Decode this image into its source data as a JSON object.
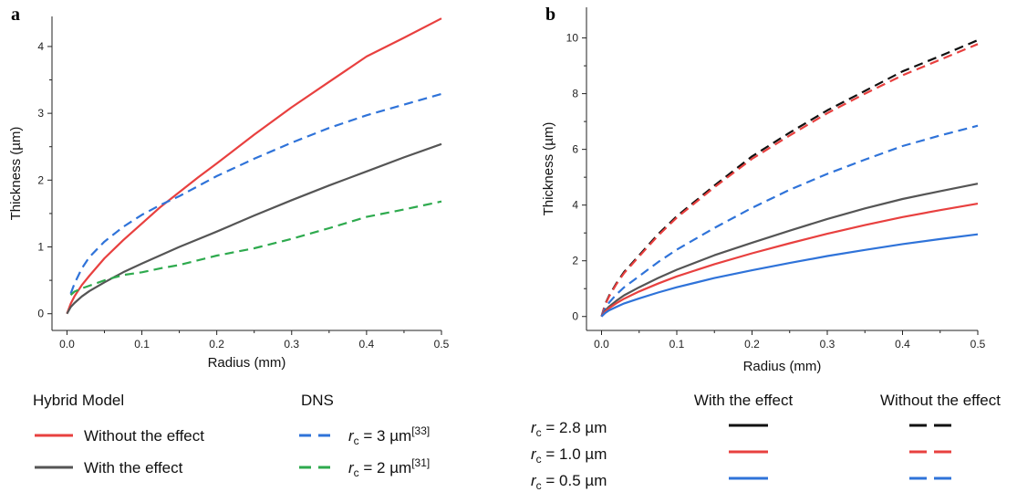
{
  "chart_data": [
    {
      "panel": "a",
      "type": "line",
      "xlabel": "Radius (mm)",
      "ylabel": "Thickness (µm)",
      "xlim": [
        -0.02,
        0.5
      ],
      "ylim": [
        -0.25,
        4.45
      ],
      "xticks": [
        "0.0",
        "0.1",
        "0.2",
        "0.3",
        "0.4",
        "0.5"
      ],
      "xtick_values": [
        0,
        0.1,
        0.2,
        0.3,
        0.4,
        0.5
      ],
      "yticks": [
        "0",
        "1",
        "2",
        "3",
        "4"
      ],
      "ytick_values": [
        0,
        1,
        2,
        3,
        4
      ],
      "legend": {
        "groups": [
          {
            "title": "Hybrid Model",
            "entries": [
              {
                "text": "Without the effect",
                "series": 0
              },
              {
                "text": "With the effect",
                "series": 1
              }
            ]
          },
          {
            "title": "DNS",
            "entries": [
              {
                "text": "r",
                "sub": "c",
                "rest": " = 3 µm",
                "sup": "[33]",
                "series": 2
              },
              {
                "text": "r",
                "sub": "c",
                "rest": " = 2 µm",
                "sup": "[31]",
                "series": 3
              }
            ]
          }
        ]
      },
      "series": [
        {
          "color": "#e8403f",
          "dash": "solid",
          "x": [
            0,
            0.005,
            0.01,
            0.02,
            0.03,
            0.05,
            0.075,
            0.1,
            0.125,
            0.15,
            0.175,
            0.2,
            0.25,
            0.3,
            0.35,
            0.4,
            0.45,
            0.5
          ],
          "y": [
            0,
            0.15,
            0.26,
            0.43,
            0.57,
            0.83,
            1.1,
            1.35,
            1.6,
            1.82,
            2.04,
            2.25,
            2.68,
            3.09,
            3.47,
            3.85,
            4.13,
            4.42
          ]
        },
        {
          "color": "#555555",
          "dash": "solid",
          "x": [
            0,
            0.005,
            0.01,
            0.02,
            0.03,
            0.05,
            0.075,
            0.1,
            0.15,
            0.2,
            0.25,
            0.3,
            0.35,
            0.4,
            0.45,
            0.5
          ],
          "y": [
            0,
            0.1,
            0.16,
            0.26,
            0.34,
            0.47,
            0.62,
            0.75,
            1.0,
            1.23,
            1.47,
            1.7,
            1.92,
            2.13,
            2.34,
            2.54
          ]
        },
        {
          "color": "#2f73d9",
          "dash": "dash",
          "x": [
            0.005,
            0.01,
            0.02,
            0.03,
            0.05,
            0.075,
            0.1,
            0.125,
            0.15,
            0.2,
            0.25,
            0.3,
            0.35,
            0.4,
            0.45,
            0.5
          ],
          "y": [
            0.3,
            0.45,
            0.68,
            0.85,
            1.08,
            1.3,
            1.48,
            1.63,
            1.76,
            2.06,
            2.32,
            2.56,
            2.78,
            2.97,
            3.13,
            3.29
          ]
        },
        {
          "color": "#2eaa4e",
          "dash": "dash",
          "x": [
            0.005,
            0.01,
            0.02,
            0.03,
            0.05,
            0.075,
            0.1,
            0.125,
            0.15,
            0.2,
            0.25,
            0.3,
            0.35,
            0.4,
            0.45,
            0.5
          ],
          "y": [
            0.28,
            0.33,
            0.38,
            0.42,
            0.5,
            0.58,
            0.62,
            0.68,
            0.73,
            0.87,
            0.98,
            1.12,
            1.28,
            1.45,
            1.56,
            1.68
          ]
        }
      ]
    },
    {
      "panel": "b",
      "type": "line",
      "xlabel": "Radius (mm)",
      "ylabel": "Thickness (µm)",
      "xlim": [
        -0.02,
        0.5
      ],
      "ylim": [
        -0.5,
        11.1
      ],
      "xticks": [
        "0.0",
        "0.1",
        "0.2",
        "0.3",
        "0.4",
        "0.5"
      ],
      "xtick_values": [
        0,
        0.1,
        0.2,
        0.3,
        0.4,
        0.5
      ],
      "yticks": [
        "0",
        "2",
        "4",
        "6",
        "8",
        "10"
      ],
      "ytick_values": [
        0,
        2,
        4,
        6,
        8,
        10
      ],
      "legend": {
        "col_with": "With the effect",
        "col_without": "Without the effect",
        "rows": [
          {
            "text": "r",
            "sub": "c",
            "rest": " = 2.8 µm",
            "color": "#111111"
          },
          {
            "text": "r",
            "sub": "c",
            "rest": " = 1.0 µm",
            "color": "#e8403f"
          },
          {
            "text": "r",
            "sub": "c",
            "rest": " = 0.5 µm",
            "color": "#2f73d9"
          }
        ]
      },
      "series": [
        {
          "color": "#111111",
          "dash": "dash",
          "x": [
            0,
            0.005,
            0.01,
            0.02,
            0.03,
            0.05,
            0.075,
            0.1,
            0.15,
            0.2,
            0.25,
            0.3,
            0.35,
            0.4,
            0.45,
            0.5
          ],
          "y": [
            0,
            0.45,
            0.75,
            1.2,
            1.6,
            2.2,
            2.95,
            3.6,
            4.7,
            5.75,
            6.6,
            7.4,
            8.1,
            8.8,
            9.35,
            9.92
          ]
        },
        {
          "color": "#e8403f",
          "dash": "dash",
          "x": [
            0,
            0.005,
            0.01,
            0.02,
            0.03,
            0.05,
            0.075,
            0.1,
            0.15,
            0.2,
            0.25,
            0.3,
            0.35,
            0.4,
            0.45,
            0.5
          ],
          "y": [
            0,
            0.43,
            0.72,
            1.17,
            1.56,
            2.16,
            2.9,
            3.55,
            4.64,
            5.66,
            6.5,
            7.3,
            8.0,
            8.66,
            9.22,
            9.78
          ]
        },
        {
          "color": "#2f73d9",
          "dash": "dash",
          "x": [
            0,
            0.005,
            0.01,
            0.02,
            0.03,
            0.05,
            0.075,
            0.1,
            0.15,
            0.2,
            0.25,
            0.3,
            0.35,
            0.4,
            0.45,
            0.5
          ],
          "y": [
            0,
            0.3,
            0.5,
            0.8,
            1.05,
            1.45,
            1.95,
            2.4,
            3.18,
            3.9,
            4.55,
            5.12,
            5.63,
            6.12,
            6.5,
            6.85
          ]
        },
        {
          "color": "#555555",
          "dash": "solid",
          "x": [
            0,
            0.005,
            0.01,
            0.02,
            0.03,
            0.05,
            0.075,
            0.1,
            0.15,
            0.2,
            0.25,
            0.3,
            0.35,
            0.4,
            0.45,
            0.5
          ],
          "y": [
            0,
            0.22,
            0.36,
            0.57,
            0.76,
            1.05,
            1.38,
            1.68,
            2.2,
            2.65,
            3.08,
            3.5,
            3.88,
            4.22,
            4.5,
            4.77
          ]
        },
        {
          "color": "#e8403f",
          "dash": "solid",
          "x": [
            0,
            0.005,
            0.01,
            0.02,
            0.03,
            0.05,
            0.075,
            0.1,
            0.15,
            0.2,
            0.25,
            0.3,
            0.35,
            0.4,
            0.45,
            0.5
          ],
          "y": [
            0,
            0.18,
            0.3,
            0.48,
            0.64,
            0.9,
            1.18,
            1.44,
            1.88,
            2.27,
            2.63,
            2.97,
            3.28,
            3.57,
            3.82,
            4.05
          ]
        },
        {
          "color": "#2f73d9",
          "dash": "solid",
          "x": [
            0,
            0.005,
            0.01,
            0.02,
            0.03,
            0.05,
            0.075,
            0.1,
            0.15,
            0.2,
            0.25,
            0.3,
            0.35,
            0.4,
            0.45,
            0.5
          ],
          "y": [
            0,
            0.13,
            0.22,
            0.35,
            0.47,
            0.65,
            0.86,
            1.05,
            1.38,
            1.66,
            1.92,
            2.17,
            2.39,
            2.6,
            2.78,
            2.95
          ]
        }
      ]
    }
  ]
}
